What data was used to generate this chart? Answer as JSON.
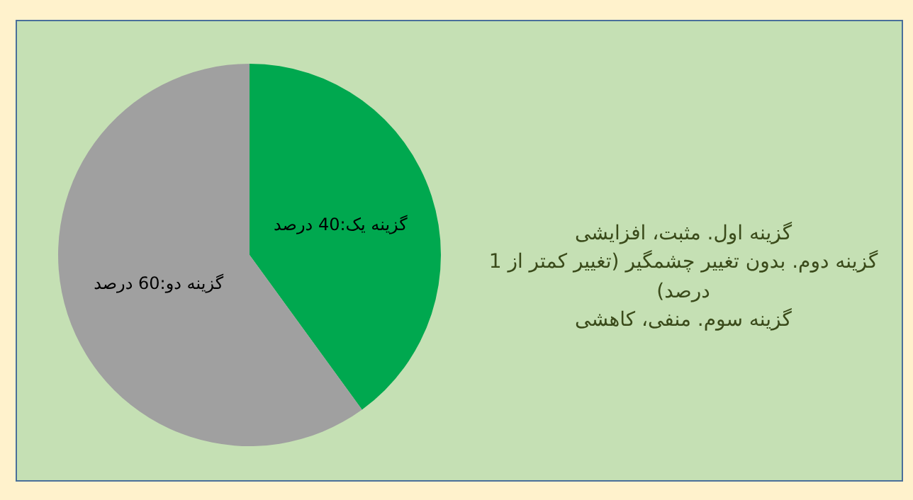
{
  "chart_data": {
    "type": "pie",
    "categories": [
      "گزینه یک",
      "گزینه دو"
    ],
    "values": [
      40,
      60
    ],
    "colors": [
      "#00a84f",
      "#a0a0a0"
    ],
    "value_labels": [
      "40 درصد",
      "60 درصد"
    ],
    "legend": false,
    "annotations": [
      "گزینه اول. مثبت، افزایشی",
      "گزینه دوم. بدون تغییر چشمگیر (تغییر کمتر از 1 درصد)",
      "گزینه سوم. منفی، کاهشی"
    ]
  }
}
